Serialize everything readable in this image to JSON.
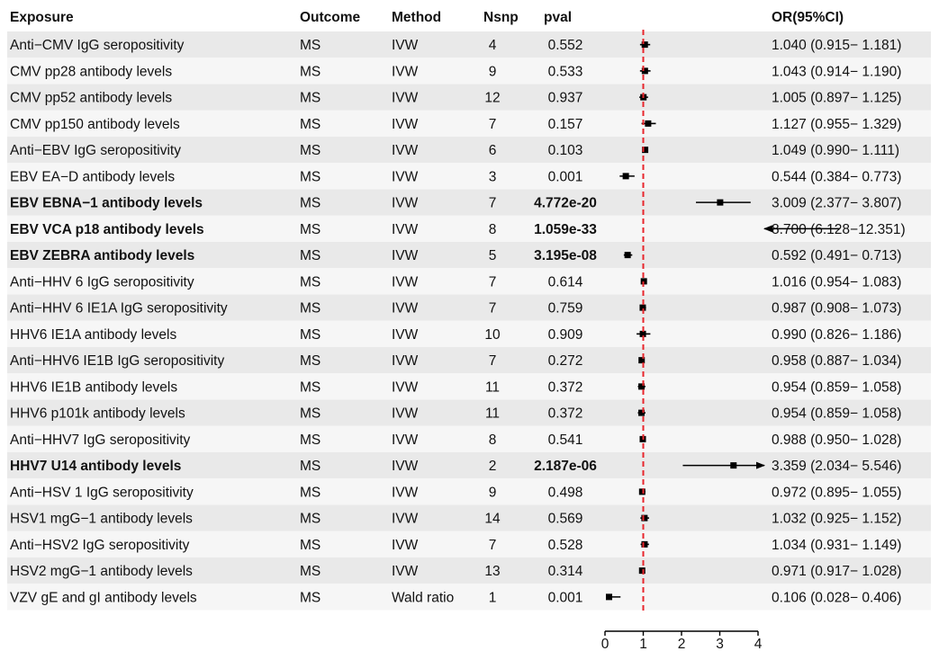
{
  "headers": {
    "exposure": "Exposure",
    "outcome": "Outcome",
    "method": "Method",
    "nsnp": "Nsnp",
    "pval": "pval",
    "or": "OR(95%CI)"
  },
  "rows": [
    {
      "exposure": "Anti−CMV IgG seropositivity",
      "outcome": "MS",
      "method": "IVW",
      "nsnp": "4",
      "pval": "0.552",
      "or_text": "1.040 (0.915− 1.181)",
      "bold": false
    },
    {
      "exposure": "CMV pp28 antibody levels",
      "outcome": "MS",
      "method": "IVW",
      "nsnp": "9",
      "pval": "0.533",
      "or_text": "1.043 (0.914− 1.190)",
      "bold": false
    },
    {
      "exposure": "CMV pp52 antibody levels",
      "outcome": "MS",
      "method": "IVW",
      "nsnp": "12",
      "pval": "0.937",
      "or_text": "1.005 (0.897− 1.125)",
      "bold": false
    },
    {
      "exposure": "CMV pp150 antibody levels",
      "outcome": "MS",
      "method": "IVW",
      "nsnp": "7",
      "pval": "0.157",
      "or_text": "1.127 (0.955− 1.329)",
      "bold": false
    },
    {
      "exposure": "Anti−EBV IgG seropositivity",
      "outcome": "MS",
      "method": "IVW",
      "nsnp": "6",
      "pval": "0.103",
      "or_text": "1.049 (0.990− 1.111)",
      "bold": false
    },
    {
      "exposure": "EBV EA−D antibody levels",
      "outcome": "MS",
      "method": "IVW",
      "nsnp": "3",
      "pval": "0.001",
      "or_text": "0.544 (0.384− 0.773)",
      "bold": false
    },
    {
      "exposure": "EBV EBNA−1 antibody levels",
      "outcome": "MS",
      "method": "IVW",
      "nsnp": "7",
      "pval": "4.772e-20",
      "or_text": "3.009 (2.377− 3.807)",
      "bold": true
    },
    {
      "exposure": "EBV VCA p18 antibody levels",
      "outcome": "MS",
      "method": "IVW",
      "nsnp": "8",
      "pval": "1.059e-33",
      "or_text": "8.700 (6.128−12.351)",
      "bold": true
    },
    {
      "exposure": "EBV ZEBRA antibody levels",
      "outcome": "MS",
      "method": "IVW",
      "nsnp": "5",
      "pval": "3.195e-08",
      "or_text": "0.592 (0.491− 0.713)",
      "bold": true
    },
    {
      "exposure": "Anti−HHV 6 IgG seropositivity",
      "outcome": "MS",
      "method": "IVW",
      "nsnp": "7",
      "pval": "0.614",
      "or_text": "1.016 (0.954− 1.083)",
      "bold": false
    },
    {
      "exposure": "Anti−HHV 6 IE1A IgG seropositivity",
      "outcome": "MS",
      "method": "IVW",
      "nsnp": "7",
      "pval": "0.759",
      "or_text": "0.987 (0.908− 1.073)",
      "bold": false
    },
    {
      "exposure": "HHV6 IE1A antibody levels",
      "outcome": "MS",
      "method": "IVW",
      "nsnp": "10",
      "pval": "0.909",
      "or_text": "0.990 (0.826− 1.186)",
      "bold": false
    },
    {
      "exposure": "Anti−HHV6 IE1B IgG seropositivity",
      "outcome": "MS",
      "method": "IVW",
      "nsnp": "7",
      "pval": "0.272",
      "or_text": "0.958 (0.887− 1.034)",
      "bold": false
    },
    {
      "exposure": "HHV6 IE1B antibody levels",
      "outcome": "MS",
      "method": "IVW",
      "nsnp": "11",
      "pval": "0.372",
      "or_text": "0.954 (0.859− 1.058)",
      "bold": false
    },
    {
      "exposure": "HHV6 p101k antibody levels",
      "outcome": "MS",
      "method": "IVW",
      "nsnp": "11",
      "pval": "0.372",
      "or_text": "0.954 (0.859− 1.058)",
      "bold": false
    },
    {
      "exposure": "Anti−HHV7 IgG seropositivity",
      "outcome": "MS",
      "method": "IVW",
      "nsnp": "8",
      "pval": "0.541",
      "or_text": "0.988 (0.950− 1.028)",
      "bold": false
    },
    {
      "exposure": "HHV7 U14 antibody levels",
      "outcome": "MS",
      "method": "IVW",
      "nsnp": "2",
      "pval": "2.187e-06",
      "or_text": "3.359 (2.034− 5.546)",
      "bold": true
    },
    {
      "exposure": "Anti−HSV 1 IgG seropositivity",
      "outcome": "MS",
      "method": "IVW",
      "nsnp": "9",
      "pval": "0.498",
      "or_text": "0.972 (0.895− 1.055)",
      "bold": false
    },
    {
      "exposure": "HSV1 mgG−1 antibody levels",
      "outcome": "MS",
      "method": "IVW",
      "nsnp": "14",
      "pval": "0.569",
      "or_text": "1.032 (0.925− 1.152)",
      "bold": false
    },
    {
      "exposure": "Anti−HSV2 IgG seropositivity",
      "outcome": "MS",
      "method": "IVW",
      "nsnp": "7",
      "pval": "0.528",
      "or_text": "1.034 (0.931− 1.149)",
      "bold": false
    },
    {
      "exposure": "HSV2 mgG−1 antibody levels",
      "outcome": "MS",
      "method": "IVW",
      "nsnp": "13",
      "pval": "0.314",
      "or_text": "0.971 (0.917− 1.028)",
      "bold": false
    },
    {
      "exposure": "VZV gE and gI antibody levels",
      "outcome": "MS",
      "method": "Wald ratio",
      "nsnp": "1",
      "pval": "0.001",
      "or_text": "0.106 (0.028− 0.406)",
      "bold": false
    }
  ],
  "chart_data": {
    "type": "forest",
    "x_axis": {
      "min": 0,
      "max": 4,
      "ticks": [
        0,
        1,
        2,
        3,
        4
      ],
      "reference_line": 1,
      "reference_color": "#e8262d"
    },
    "series": [
      {
        "or": 1.04,
        "lower": 0.915,
        "upper": 1.181
      },
      {
        "or": 1.043,
        "lower": 0.914,
        "upper": 1.19
      },
      {
        "or": 1.005,
        "lower": 0.897,
        "upper": 1.125
      },
      {
        "or": 1.127,
        "lower": 0.955,
        "upper": 1.329
      },
      {
        "or": 1.049,
        "lower": 0.99,
        "upper": 1.111
      },
      {
        "or": 0.544,
        "lower": 0.384,
        "upper": 0.773
      },
      {
        "or": 3.009,
        "lower": 2.377,
        "upper": 3.807
      },
      {
        "or": 8.7,
        "lower": 6.128,
        "upper": 12.351
      },
      {
        "or": 0.592,
        "lower": 0.491,
        "upper": 0.713
      },
      {
        "or": 1.016,
        "lower": 0.954,
        "upper": 1.083
      },
      {
        "or": 0.987,
        "lower": 0.908,
        "upper": 1.073
      },
      {
        "or": 0.99,
        "lower": 0.826,
        "upper": 1.186
      },
      {
        "or": 0.958,
        "lower": 0.887,
        "upper": 1.034
      },
      {
        "or": 0.954,
        "lower": 0.859,
        "upper": 1.058
      },
      {
        "or": 0.954,
        "lower": 0.859,
        "upper": 1.058
      },
      {
        "or": 0.988,
        "lower": 0.95,
        "upper": 1.028
      },
      {
        "or": 3.359,
        "lower": 2.034,
        "upper": 5.546
      },
      {
        "or": 0.972,
        "lower": 0.895,
        "upper": 1.055
      },
      {
        "or": 1.032,
        "lower": 0.925,
        "upper": 1.152
      },
      {
        "or": 1.034,
        "lower": 0.931,
        "upper": 1.149
      },
      {
        "or": 0.971,
        "lower": 0.917,
        "upper": 1.028
      },
      {
        "or": 0.106,
        "lower": 0.028,
        "upper": 0.406
      }
    ],
    "colors": {
      "row_dark": "#e9e9e9",
      "row_light": "#f6f6f6",
      "marks": "#000000"
    }
  }
}
